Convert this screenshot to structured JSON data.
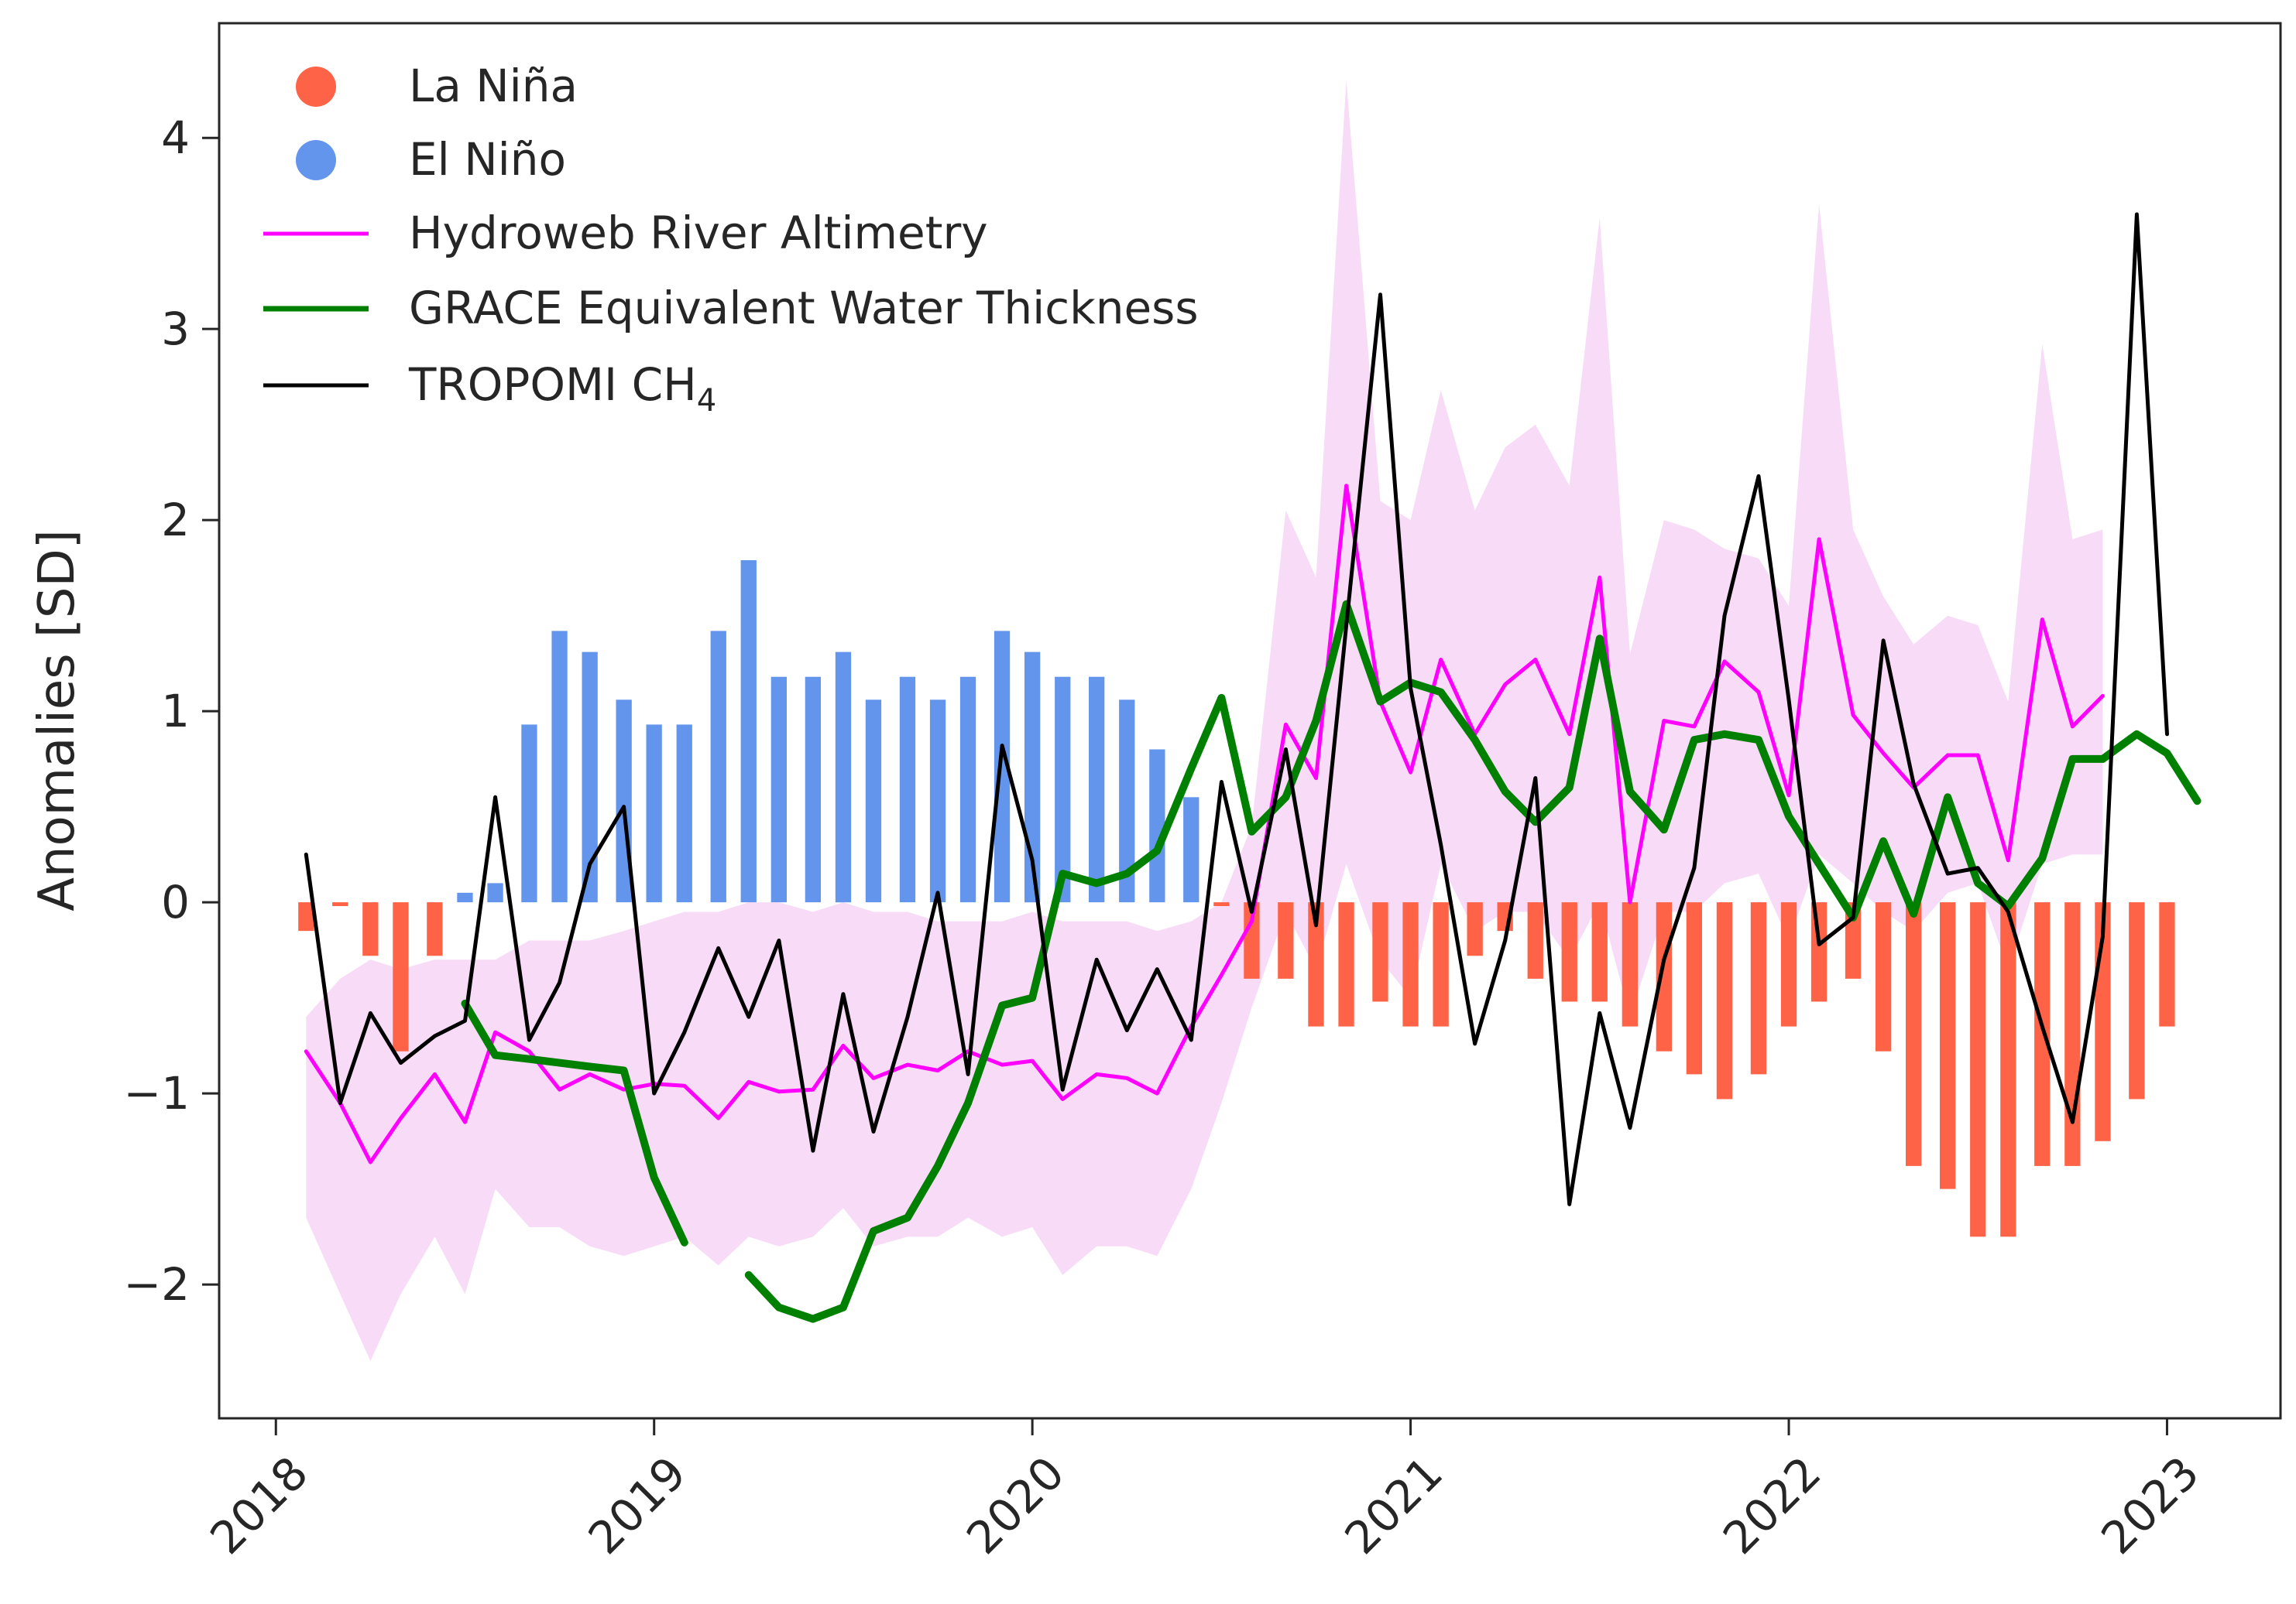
{
  "chart_data": {
    "type": "line",
    "title": "",
    "xlabel": "",
    "ylabel": "Anomalies [SD]",
    "xlim": [
      2017.85,
      2023.3
    ],
    "ylim": [
      -2.7,
      4.6
    ],
    "x_ticks": [
      2018,
      2019,
      2020,
      2021,
      2022,
      2023
    ],
    "x_tick_labels": [
      "2018",
      "2019",
      "2020",
      "2021",
      "2022",
      "2023"
    ],
    "y_ticks": [
      -2,
      -1,
      0,
      1,
      2,
      3,
      4
    ],
    "y_tick_labels": [
      "−2",
      "−1",
      "0",
      "1",
      "2",
      "3",
      "4"
    ],
    "legend_location": "top-left",
    "legend": [
      {
        "name": "La Niña",
        "marker": "circle",
        "color": "#ff6347"
      },
      {
        "name": "El Niño",
        "marker": "circle",
        "color": "#6495ed"
      },
      {
        "name": "Hydroweb River Altimetry",
        "marker": "line",
        "color": "#ff00ff"
      },
      {
        "name": "GRACE Equivalent Water Thickness",
        "marker": "line",
        "color": "#008000"
      },
      {
        "name": "TROPOMI CH",
        "subscript": "4",
        "marker": "line",
        "color": "#000000"
      }
    ],
    "enso_bars": {
      "x": [
        2018.08,
        2018.17,
        2018.25,
        2018.33,
        2018.42,
        2018.5,
        2018.58,
        2018.67,
        2018.75,
        2018.83,
        2018.92,
        2019.0,
        2019.08,
        2019.17,
        2019.25,
        2019.33,
        2019.42,
        2019.5,
        2019.58,
        2019.67,
        2019.75,
        2019.83,
        2019.92,
        2020.0,
        2020.08,
        2020.17,
        2020.25,
        2020.33,
        2020.42,
        2020.5,
        2020.58,
        2020.67,
        2020.75,
        2020.83,
        2020.92,
        2021.0,
        2021.08,
        2021.17,
        2021.25,
        2021.33,
        2021.42,
        2021.5,
        2021.58,
        2021.67,
        2021.75,
        2021.83,
        2021.92,
        2022.0,
        2022.08,
        2022.17,
        2022.25,
        2022.33,
        2022.42,
        2022.5,
        2022.58,
        2022.67,
        2022.75,
        2022.83,
        2022.92,
        2023.0
      ],
      "values": [
        -0.15,
        -0.02,
        -0.28,
        -0.78,
        -0.28,
        0.05,
        0.1,
        0.93,
        1.42,
        1.31,
        1.06,
        0.93,
        0.93,
        1.42,
        1.79,
        1.18,
        1.18,
        1.31,
        1.06,
        1.18,
        1.06,
        1.18,
        1.42,
        1.31,
        1.18,
        1.18,
        1.06,
        0.8,
        0.55,
        -0.02,
        -0.4,
        -0.4,
        -0.65,
        -0.65,
        -0.52,
        -0.65,
        -0.65,
        -0.28,
        -0.15,
        -0.4,
        -0.52,
        -0.52,
        -0.65,
        -0.78,
        -0.9,
        -1.03,
        -0.9,
        -0.65,
        -0.52,
        -0.4,
        -0.78,
        -1.38,
        -1.5,
        -1.75,
        -1.75,
        -1.38,
        -1.38,
        -1.25,
        -1.03,
        -0.65
      ],
      "positive_color": "#6495ed",
      "negative_color": "#ff6347"
    },
    "series": [
      {
        "name": "Hydroweb River Altimetry",
        "color": "#ff00ff",
        "x": [
          2018.08,
          2018.17,
          2018.25,
          2018.33,
          2018.42,
          2018.5,
          2018.58,
          2018.67,
          2018.75,
          2018.83,
          2018.92,
          2019.0,
          2019.08,
          2019.17,
          2019.25,
          2019.33,
          2019.42,
          2019.5,
          2019.58,
          2019.67,
          2019.75,
          2019.83,
          2019.92,
          2020.0,
          2020.08,
          2020.17,
          2020.25,
          2020.33,
          2020.42,
          2020.5,
          2020.58,
          2020.67,
          2020.75,
          2020.83,
          2020.92,
          2021.0,
          2021.08,
          2021.17,
          2021.25,
          2021.33,
          2021.42,
          2021.5,
          2021.58,
          2021.67,
          2021.75,
          2021.83,
          2021.92,
          2022.0,
          2022.08,
          2022.17,
          2022.25,
          2022.33,
          2022.42,
          2022.5,
          2022.58,
          2022.67,
          2022.75,
          2022.83,
          2022.92,
          2023.0
        ],
        "values": [
          -0.78,
          -1.05,
          -1.36,
          -1.13,
          -0.9,
          -1.15,
          -0.68,
          -0.78,
          -0.98,
          -0.9,
          -0.98,
          -0.95,
          -0.96,
          -1.13,
          -0.94,
          -0.99,
          -0.98,
          -0.75,
          -0.92,
          -0.85,
          -0.88,
          -0.78,
          -0.85,
          -0.83,
          -1.03,
          -0.9,
          -0.92,
          -1.0,
          -0.65,
          -0.38,
          -0.1,
          0.93,
          0.65,
          2.18,
          1.05,
          0.68,
          1.27,
          0.88,
          1.14,
          1.27,
          0.88,
          1.7,
          0.0,
          0.95,
          0.92,
          1.26,
          1.1,
          0.56,
          1.9,
          0.98,
          0.78,
          0.6,
          0.77,
          0.77,
          0.22,
          1.48,
          0.92,
          1.08,
          null,
          null
        ],
        "band_upper": [
          -0.6,
          -0.4,
          -0.3,
          -0.35,
          -0.3,
          -0.3,
          -0.3,
          -0.2,
          -0.2,
          -0.2,
          -0.15,
          -0.1,
          -0.05,
          -0.05,
          0.0,
          0.0,
          -0.05,
          0.0,
          -0.05,
          -0.05,
          -0.1,
          -0.1,
          -0.1,
          -0.05,
          -0.1,
          -0.1,
          -0.1,
          -0.15,
          -0.1,
          0.0,
          0.4,
          2.05,
          1.7,
          4.3,
          2.1,
          2.0,
          2.68,
          2.05,
          2.38,
          2.5,
          2.18,
          3.58,
          1.3,
          2.0,
          1.95,
          1.85,
          1.8,
          1.55,
          3.65,
          1.95,
          1.6,
          1.35,
          1.5,
          1.45,
          1.05,
          2.92,
          1.9,
          1.95,
          null,
          null
        ],
        "band_lower": [
          -1.65,
          -2.05,
          -2.4,
          -2.05,
          -1.75,
          -2.05,
          -1.5,
          -1.7,
          -1.7,
          -1.8,
          -1.85,
          -1.8,
          -1.75,
          -1.9,
          -1.75,
          -1.8,
          -1.75,
          -1.6,
          -1.8,
          -1.75,
          -1.75,
          -1.65,
          -1.75,
          -1.7,
          -1.95,
          -1.8,
          -1.8,
          -1.85,
          -1.5,
          -1.05,
          -0.55,
          -0.05,
          -0.35,
          0.2,
          -0.3,
          -0.5,
          0.2,
          -0.15,
          -0.05,
          -0.05,
          -0.3,
          0.0,
          -0.6,
          -0.05,
          -0.05,
          0.1,
          0.15,
          -0.2,
          0.25,
          0.1,
          -0.05,
          -0.15,
          0.05,
          0.1,
          -0.35,
          0.2,
          0.25,
          0.25,
          null,
          null
        ],
        "band_color": "#f6d5f6"
      },
      {
        "name": "GRACE Equivalent Water Thickness",
        "color": "#008000",
        "x": [
          2018.5,
          2018.58,
          2018.67,
          2018.75,
          2018.83,
          2018.92,
          2019.0,
          2019.08,
          2019.17,
          2019.25,
          2019.33,
          2019.42,
          2019.5,
          2019.58,
          2019.67,
          2019.75,
          2019.83,
          2019.92,
          2020.0,
          2020.08,
          2020.17,
          2020.25,
          2020.33,
          2020.42,
          2020.5,
          2020.58,
          2020.67,
          2020.75,
          2020.83,
          2020.92,
          2021.0,
          2021.08,
          2021.17,
          2021.25,
          2021.33,
          2021.42,
          2021.5,
          2021.58,
          2021.67,
          2021.75,
          2021.83,
          2021.92,
          2022.0,
          2022.08,
          2022.17,
          2022.25,
          2022.33,
          2022.42,
          2022.5,
          2022.58,
          2022.67,
          2022.75,
          2022.83,
          2022.92,
          2023.0,
          2023.08
        ],
        "values": [
          -0.53,
          -0.8,
          -0.82,
          -0.84,
          -0.86,
          -0.88,
          -1.44,
          -1.78,
          null,
          -1.95,
          -2.12,
          -2.18,
          -2.12,
          -1.72,
          -1.65,
          -1.38,
          -1.05,
          -0.54,
          -0.5,
          0.15,
          0.1,
          0.15,
          0.27,
          0.7,
          1.07,
          0.37,
          0.55,
          0.95,
          1.56,
          1.05,
          1.15,
          1.1,
          0.85,
          0.58,
          0.42,
          0.6,
          1.38,
          0.58,
          0.38,
          0.85,
          0.88,
          0.85,
          0.45,
          0.2,
          -0.08,
          0.32,
          -0.06,
          0.55,
          0.1,
          -0.02,
          0.23,
          0.75,
          0.75,
          0.88,
          0.78,
          0.53
        ]
      },
      {
        "name": "TROPOMI CH4",
        "color": "#000000",
        "x": [
          2018.08,
          2018.17,
          2018.25,
          2018.33,
          2018.42,
          2018.5,
          2018.58,
          2018.67,
          2018.75,
          2018.83,
          2018.92,
          2019.0,
          2019.08,
          2019.17,
          2019.25,
          2019.33,
          2019.42,
          2019.5,
          2019.58,
          2019.67,
          2019.75,
          2019.83,
          2019.92,
          2020.0,
          2020.08,
          2020.17,
          2020.25,
          2020.33,
          2020.42,
          2020.5,
          2020.58,
          2020.67,
          2020.75,
          2020.83,
          2020.92,
          2021.0,
          2021.08,
          2021.17,
          2021.25,
          2021.33,
          2021.42,
          2021.5,
          2021.58,
          2021.67,
          2021.75,
          2021.83,
          2021.92,
          2022.0,
          2022.08,
          2022.17,
          2022.25,
          2022.33,
          2022.42,
          2022.5,
          2022.58,
          2022.67,
          2022.75,
          2022.83,
          2022.92,
          2023.0
        ],
        "values": [
          0.25,
          -1.05,
          -0.58,
          -0.84,
          -0.7,
          -0.62,
          0.55,
          -0.72,
          -0.42,
          0.2,
          0.5,
          -1.0,
          -0.68,
          -0.24,
          -0.6,
          -0.2,
          -1.3,
          -0.48,
          -1.2,
          -0.6,
          0.05,
          -0.9,
          0.82,
          0.22,
          -0.98,
          -0.3,
          -0.67,
          -0.35,
          -0.72,
          0.63,
          -0.05,
          0.8,
          -0.12,
          1.45,
          3.18,
          1.12,
          0.3,
          -0.74,
          -0.2,
          0.65,
          -1.58,
          -0.58,
          -1.18,
          -0.3,
          0.18,
          1.5,
          2.23,
          1.06,
          -0.22,
          -0.08,
          1.37,
          0.62,
          0.15,
          0.18,
          -0.05,
          -0.65,
          -1.15,
          -0.18,
          3.6,
          0.88
        ]
      }
    ]
  }
}
